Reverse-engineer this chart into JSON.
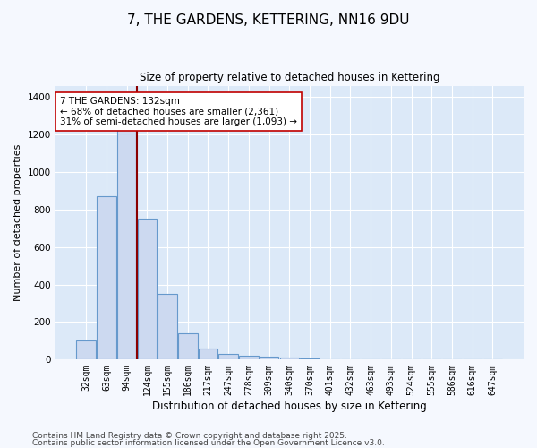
{
  "title": "7, THE GARDENS, KETTERING, NN16 9DU",
  "subtitle": "Size of property relative to detached houses in Kettering",
  "xlabel": "Distribution of detached houses by size in Kettering",
  "ylabel": "Number of detached properties",
  "bar_color": "#ccd9f0",
  "bar_edge_color": "#6699cc",
  "plot_bg_color": "#dce9f8",
  "fig_bg_color": "#f5f8fe",
  "grid_color": "#ffffff",
  "categories": [
    "32sqm",
    "63sqm",
    "94sqm",
    "124sqm",
    "155sqm",
    "186sqm",
    "217sqm",
    "247sqm",
    "278sqm",
    "309sqm",
    "340sqm",
    "370sqm",
    "401sqm",
    "432sqm",
    "463sqm",
    "493sqm",
    "524sqm",
    "555sqm",
    "586sqm",
    "616sqm",
    "647sqm"
  ],
  "values": [
    100,
    870,
    1300,
    750,
    350,
    140,
    60,
    30,
    20,
    15,
    10,
    5,
    3,
    0,
    0,
    0,
    0,
    0,
    0,
    0,
    0
  ],
  "red_line_index": 2.5,
  "red_line_color": "#8b0000",
  "annotation_text": "7 THE GARDENS: 132sqm\n← 68% of detached houses are smaller (2,361)\n31% of semi-detached houses are larger (1,093) →",
  "annotation_box_color": "#ffffff",
  "annotation_box_edge": "#c00000",
  "ylim": [
    0,
    1460
  ],
  "yticks": [
    0,
    200,
    400,
    600,
    800,
    1000,
    1200,
    1400
  ],
  "footnote_line1": "Contains HM Land Registry data © Crown copyright and database right 2025.",
  "footnote_line2": "Contains public sector information licensed under the Open Government Licence v3.0.",
  "title_fontsize": 11,
  "subtitle_fontsize": 8.5,
  "tick_fontsize": 7,
  "ylabel_fontsize": 8,
  "xlabel_fontsize": 8.5,
  "annotation_fontsize": 7.5,
  "footnote_fontsize": 6.5
}
